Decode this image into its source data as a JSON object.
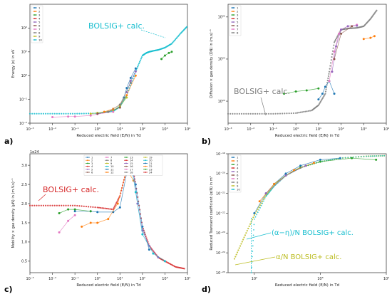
{
  "figure": {
    "panel_labels": [
      "a)",
      "b)",
      "c)",
      "d)"
    ]
  },
  "chart_data": [
    {
      "panel": "a)",
      "type": "scatter",
      "xlabel": "Reduced electric field (E/N) in Td",
      "ylabel": "Energy (ε) in eV",
      "xscale": "log",
      "yscale": "log",
      "xlim": [
        0.001,
        10000
      ],
      "ylim": [
        0.01,
        1000
      ],
      "xticks": [
        0.001,
        0.01,
        0.1,
        1,
        10,
        100,
        1000,
        10000
      ],
      "xticklabels": [
        "10⁻³",
        "10⁻²",
        "10⁻¹",
        "10⁰",
        "10¹",
        "10²",
        "10³",
        "10⁴"
      ],
      "yticks": [
        0.01,
        0.1,
        1,
        10,
        100
      ],
      "yticklabels": [
        "10⁻²",
        "10⁻¹",
        "10⁰",
        "10¹",
        "10²"
      ],
      "legend": [
        "1",
        "2",
        "3",
        "4",
        "5",
        "6",
        "7",
        "8",
        "9",
        "10"
      ],
      "legend_position": "top-left",
      "annotation": "BOLSIG+ calc.",
      "series": [
        {
          "color": "#1f77b4",
          "x": [
            10,
            15,
            20,
            30,
            50
          ],
          "y": [
            0.05,
            0.12,
            0.3,
            0.8,
            2.0
          ]
        },
        {
          "color": "#2ca02c",
          "x": [
            700,
            1000,
            1500,
            2000
          ],
          "y": [
            5,
            7,
            9,
            10
          ]
        },
        {
          "color": "#bcbd22",
          "x": [
            0.5,
            1,
            2,
            5,
            10,
            20
          ],
          "y": [
            0.025,
            0.027,
            0.03,
            0.035,
            0.05,
            0.12
          ]
        },
        {
          "color": "#e377c2",
          "x": [
            0.01,
            0.05,
            0.1,
            0.5,
            1,
            5
          ],
          "y": [
            0.018,
            0.019,
            0.019,
            0.021,
            0.024,
            0.03
          ]
        },
        {
          "color": "#ff7f0e",
          "x": [
            2,
            5,
            10,
            20,
            50
          ],
          "y": [
            0.03,
            0.04,
            0.06,
            0.15,
            1.0
          ]
        },
        {
          "color": "#9467bd",
          "x": [
            20,
            30,
            50
          ],
          "y": [
            0.2,
            0.6,
            1.5
          ]
        },
        {
          "color": "#8c564b",
          "x": [
            1,
            3,
            10
          ],
          "y": [
            0.025,
            0.03,
            0.045
          ]
        },
        {
          "color": "#7f7f7f",
          "x": [
            3,
            10,
            30
          ],
          "y": [
            0.03,
            0.06,
            0.5
          ]
        }
      ],
      "bolsig": {
        "color": "#17becf",
        "x": [
          0.001,
          0.01,
          0.1,
          1,
          5,
          10,
          20,
          50,
          100,
          150,
          200,
          300,
          500,
          1000,
          2000,
          5000,
          10000
        ],
        "y": [
          0.025,
          0.025,
          0.025,
          0.026,
          0.032,
          0.05,
          0.15,
          1.5,
          7,
          9,
          10,
          11,
          12,
          15,
          22,
          60,
          120
        ]
      }
    },
    {
      "panel": "b)",
      "type": "scatter",
      "xlabel": "Reduced electric field (E/N) in Td",
      "ylabel": "Diffusion × gas density (DN) in (m.s)⁻¹",
      "xscale": "log",
      "yscale": "log",
      "xlim": [
        0.001,
        10000
      ],
      "ylim": [
        3e+22,
        2e+25
      ],
      "xticks": [
        0.001,
        0.01,
        0.1,
        1,
        10,
        100,
        1000,
        10000
      ],
      "xticklabels": [
        "10⁻³",
        "10⁻²",
        "10⁻¹",
        "10⁰",
        "10¹",
        "10²",
        "10³",
        "10⁴"
      ],
      "yticks": [
        1e+23,
        1e+24,
        1e+25
      ],
      "yticklabels": [
        "10²³",
        "10²⁴",
        "10²⁵"
      ],
      "legend": [
        "1",
        "2",
        "3",
        "4",
        "5",
        "6",
        "7",
        "8"
      ],
      "legend_position": "top-left",
      "annotation": "BOLSIG+ calc.",
      "series": [
        {
          "color": "#1f77b4",
          "x": [
            10,
            15,
            20,
            30,
            50
          ],
          "y": [
            1.1e+23,
            1.5e+23,
            2.2e+23,
            3e+23,
            1.5e+23
          ]
        },
        {
          "color": "#2ca02c",
          "x": [
            0.3,
            1,
            3,
            10
          ],
          "y": [
            1.5e+23,
            1.7e+23,
            1.8e+23,
            2e+23
          ]
        },
        {
          "color": "#e377c2",
          "x": [
            30,
            50,
            80,
            100,
            200,
            500
          ],
          "y": [
            3e+23,
            1.5e+24,
            4e+24,
            5e+24,
            6e+24,
            6.5e+24
          ]
        },
        {
          "color": "#9467bd",
          "x": [
            40,
            60,
            100,
            200,
            500
          ],
          "y": [
            5e+23,
            2e+24,
            5e+24,
            6e+24,
            6.2e+24
          ]
        },
        {
          "color": "#ff7f0e",
          "x": [
            1000,
            2000,
            3000
          ],
          "y": [
            3e+24,
            3.2e+24,
            3.5e+24
          ]
        },
        {
          "color": "#8c564b",
          "x": [
            50,
            100,
            300
          ],
          "y": [
            1e+24,
            4e+24,
            6e+24
          ]
        }
      ],
      "bolsig": {
        "color": "#7f7f7f",
        "x": [
          0.001,
          0.01,
          0.1,
          1,
          5,
          10,
          20,
          30,
          50,
          100,
          200,
          500,
          1000,
          2000,
          4000
        ],
        "y": [
          5e+22,
          5e+22,
          5e+22,
          5.2e+22,
          6e+22,
          8e+22,
          1.5e+23,
          5e+23,
          2.5e+24,
          5e+24,
          5.3e+24,
          5.5e+24,
          6e+24,
          9e+24,
          1.5e+25
        ]
      }
    },
    {
      "panel": "c)",
      "type": "scatter",
      "xlabel": "Reduced electric field (E/N) in Td",
      "ylabel": "Mobility × gas density (μN) in (m.V.s)⁻¹",
      "xscale": "log",
      "yscale": "linear",
      "xlim": [
        0.001,
        10000
      ],
      "ylim": [
        0.2,
        3.3
      ],
      "scale_label": "1e24",
      "xticks": [
        0.001,
        0.01,
        0.1,
        1,
        10,
        100,
        1000,
        10000
      ],
      "xticklabels": [
        "10⁻³",
        "10⁻²",
        "10⁻¹",
        "10⁰",
        "10¹",
        "10²",
        "10³",
        "10⁴"
      ],
      "yticks": [
        0.5,
        1.0,
        1.5,
        2.0,
        2.5,
        3.0
      ],
      "yticklabels": [
        "0.5",
        "1.0",
        "1.5",
        "2.0",
        "2.5",
        "3.0"
      ],
      "legend": [
        "1",
        "2",
        "3",
        "4",
        "5",
        "6",
        "7",
        "8",
        "9",
        "10",
        "11",
        "12",
        "13",
        "14",
        "15",
        "16",
        "17",
        "18",
        "19",
        "20",
        "21",
        "22",
        "23",
        "24"
      ],
      "legend_position": "top-right",
      "annotation": "BOLSIG+ calc.",
      "series": [
        {
          "color": "#1f77b4",
          "x": [
            0.1,
            0.5,
            1,
            5,
            10,
            20,
            30,
            50,
            100,
            200
          ],
          "y": [
            1.8,
            1.8,
            1.78,
            1.78,
            1.9,
            2.8,
            3.1,
            2.5,
            1.4,
            0.8
          ]
        },
        {
          "color": "#ff7f0e",
          "x": [
            0.2,
            0.5,
            1,
            3,
            8,
            20,
            40
          ],
          "y": [
            1.4,
            1.5,
            1.5,
            1.6,
            2.0,
            2.9,
            2.6
          ]
        },
        {
          "color": "#e377c2",
          "x": [
            0.02,
            0.05,
            0.1
          ],
          "y": [
            1.25,
            1.55,
            1.7
          ]
        },
        {
          "color": "#2ca02c",
          "x": [
            0.02,
            0.05,
            0.1,
            0.5
          ],
          "y": [
            1.75,
            1.85,
            1.85,
            1.8
          ]
        },
        {
          "color": "#9467bd",
          "x": [
            20,
            30,
            40,
            60,
            100,
            200,
            500
          ],
          "y": [
            3.0,
            3.2,
            2.8,
            2.0,
            1.3,
            0.9,
            0.6
          ]
        },
        {
          "color": "#17becf",
          "x": [
            30,
            50,
            100,
            300,
            1000
          ],
          "y": [
            3.1,
            2.3,
            1.2,
            0.7,
            0.5
          ]
        }
      ],
      "bolsig": {
        "color": "#d62728",
        "x": [
          0.001,
          0.01,
          0.1,
          1,
          5,
          10,
          20,
          30,
          50,
          100,
          200,
          500,
          1000,
          3000,
          8000
        ],
        "y": [
          1.95,
          1.95,
          1.95,
          1.9,
          1.85,
          2.2,
          2.9,
          3.2,
          2.5,
          1.4,
          0.9,
          0.6,
          0.5,
          0.35,
          0.3
        ]
      }
    },
    {
      "panel": "d)",
      "type": "scatter",
      "xlabel": "Reduced electric field (E/N) in Td",
      "ylabel": "Reduced Townsend coefficient (α/N) in m²",
      "xscale": "log",
      "yscale": "log",
      "xlim": [
        40,
        10000
      ],
      "ylim": [
        1e-25,
        1e-19
      ],
      "xticks": [
        100,
        1000,
        10000
      ],
      "xticklabels": [
        "10²",
        "10³",
        "10⁴"
      ],
      "yticks": [
        1e-25,
        1e-24,
        1e-23,
        1e-22,
        1e-21,
        1e-20,
        1e-19
      ],
      "yticklabels": [
        "10⁻²⁵",
        "10⁻²⁴",
        "10⁻²³",
        "10⁻²²",
        "10⁻²¹",
        "10⁻²⁰",
        "10⁻¹⁹"
      ],
      "legend": [
        "1",
        "2",
        "3",
        "4",
        "5",
        "6",
        "7",
        "8",
        "9",
        "10"
      ],
      "legend_position": "top-left",
      "annotations": [
        "(α−η)/N BOLSIG+ calc.",
        "α/N BOLSIG+ calc."
      ],
      "series": [
        {
          "color": "#1f77b4",
          "x": [
            100,
            150,
            200,
            300,
            500,
            1000,
            2000
          ],
          "y": [
            1e-22,
            1e-21,
            3e-21,
            1e-20,
            2.5e-20,
            5e-20,
            6e-20
          ]
        },
        {
          "color": "#2ca02c",
          "x": [
            200,
            300,
            500,
            1000,
            3000,
            7000
          ],
          "y": [
            3e-21,
            8e-21,
            2e-20,
            4e-20,
            6e-20,
            5e-20
          ]
        },
        {
          "color": "#ff7f0e",
          "x": [
            120,
            200,
            400,
            800
          ],
          "y": [
            4e-22,
            3e-21,
            1.5e-20,
            3.5e-20
          ]
        },
        {
          "color": "#9467bd",
          "x": [
            150,
            300,
            600
          ],
          "y": [
            1e-21,
            8e-21,
            2.5e-20
          ]
        }
      ],
      "bolsig": {
        "color": "#bcbd22",
        "x": [
          50,
          70,
          100,
          150,
          200,
          300,
          500,
          1000,
          2000,
          5000,
          10000
        ],
        "y": [
          5e-25,
          6e-24,
          8e-23,
          8e-22,
          2.5e-21,
          8e-21,
          2e-20,
          4e-20,
          6e-20,
          7.5e-20,
          8e-20
        ]
      },
      "bolsig_eta": {
        "color": "#17becf",
        "x": [
          90,
          100,
          150,
          200,
          300,
          500,
          1000,
          2000,
          5000,
          10000
        ],
        "y": [
          1e-25,
          5e-23,
          7e-22,
          2.3e-21,
          8e-21,
          2e-20,
          4e-20,
          6e-20,
          7.5e-20,
          8e-20
        ]
      }
    }
  ]
}
